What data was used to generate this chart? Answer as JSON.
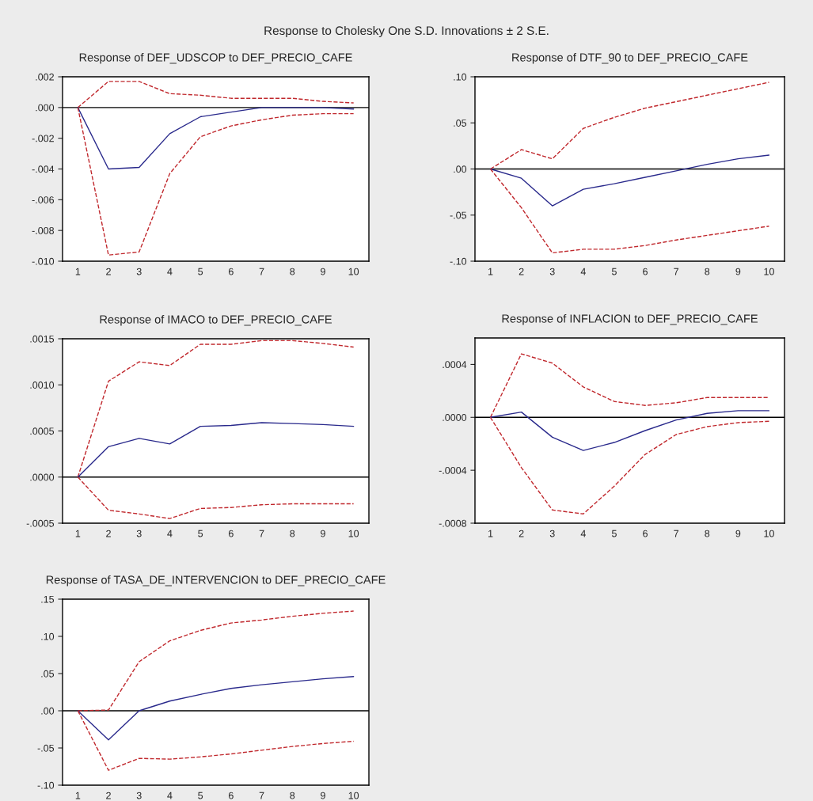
{
  "chart_data": [
    {
      "type": "line",
      "title": "Response of DEF_UDSCOP to DEF_PRECIO_CAFE",
      "annotations": [
        "Response to Cholesky One S.D. Innovations ± 2 S.E."
      ],
      "categories": [
        "1",
        "2",
        "3",
        "4",
        "5",
        "6",
        "7",
        "8",
        "9",
        "10"
      ],
      "ylim": [
        -0.01,
        0.002
      ],
      "yticks": [
        {
          "value": 0.002,
          "label": ".002"
        },
        {
          "value": 0,
          "label": ".000"
        },
        {
          "value": -0.002,
          "label": "-.002"
        },
        {
          "value": -0.004,
          "label": "-.004"
        },
        {
          "value": -0.006,
          "label": "-.006"
        },
        {
          "value": -0.008,
          "label": "-.008"
        },
        {
          "value": -0.01,
          "label": "-.010"
        }
      ],
      "ref_lines": [
        {
          "axis": "y",
          "value": 0,
          "color": "#000000"
        }
      ],
      "series": [
        {
          "color": "#c0282d",
          "line_style": "dashed",
          "values": [
            0,
            0.0017,
            0.0017,
            0.0009,
            0.0008,
            0.0006,
            0.0006,
            0.0006,
            0.0004,
            0.0003
          ]
        },
        {
          "color": "#2a2a8c",
          "line_style": "solid",
          "values": [
            0,
            -0.004,
            -0.0039,
            -0.0017,
            -0.0006,
            -0.0003,
            0,
            0,
            0,
            -0.0001
          ]
        },
        {
          "color": "#c0282d",
          "line_style": "dashed",
          "values": [
            0,
            -0.0096,
            -0.0094,
            -0.0043,
            -0.0019,
            -0.0012,
            -0.0008,
            -0.0005,
            -0.0004,
            -0.0004
          ]
        }
      ]
    },
    {
      "type": "line",
      "title": "Response of DTF_90 to DEF_PRECIO_CAFE",
      "categories": [
        "1",
        "2",
        "3",
        "4",
        "5",
        "6",
        "7",
        "8",
        "9",
        "10"
      ],
      "ylim": [
        -0.1,
        0.1
      ],
      "yticks": [
        {
          "value": 0.1,
          "label": ".10"
        },
        {
          "value": 0.05,
          "label": ".05"
        },
        {
          "value": 0,
          "label": ".00"
        },
        {
          "value": -0.05,
          "label": "-.05"
        },
        {
          "value": -0.1,
          "label": "-.10"
        }
      ],
      "ref_lines": [
        {
          "axis": "y",
          "value": 0,
          "color": "#000000"
        }
      ],
      "series": [
        {
          "color": "#c0282d",
          "line_style": "dashed",
          "values": [
            0,
            0.021,
            0.011,
            0.044,
            0.056,
            0.066,
            0.073,
            0.08,
            0.087,
            0.094
          ]
        },
        {
          "color": "#2a2a8c",
          "line_style": "solid",
          "values": [
            0,
            -0.01,
            -0.04,
            -0.022,
            -0.016,
            -0.009,
            -0.002,
            0.005,
            0.011,
            0.015
          ]
        },
        {
          "color": "#c0282d",
          "line_style": "dashed",
          "values": [
            0,
            -0.042,
            -0.091,
            -0.087,
            -0.087,
            -0.083,
            -0.077,
            -0.072,
            -0.067,
            -0.062
          ]
        }
      ]
    },
    {
      "type": "line",
      "title": "Response of IMACO to DEF_PRECIO_CAFE",
      "categories": [
        "1",
        "2",
        "3",
        "4",
        "5",
        "6",
        "7",
        "8",
        "9",
        "10"
      ],
      "ylim": [
        -0.0005,
        0.0015
      ],
      "yticks": [
        {
          "value": 0.0015,
          "label": ".0015"
        },
        {
          "value": 0.001,
          "label": ".0010"
        },
        {
          "value": 0.0005,
          "label": ".0005"
        },
        {
          "value": 0,
          "label": ".0000"
        },
        {
          "value": -0.0005,
          "label": "-.0005"
        }
      ],
      "ref_lines": [
        {
          "axis": "y",
          "value": 0,
          "color": "#000000"
        }
      ],
      "series": [
        {
          "color": "#c0282d",
          "line_style": "dashed",
          "values": [
            0,
            0.00104,
            0.00125,
            0.00121,
            0.00144,
            0.00144,
            0.00148,
            0.00148,
            0.00145,
            0.00141
          ]
        },
        {
          "color": "#2a2a8c",
          "line_style": "solid",
          "values": [
            0,
            0.00033,
            0.00042,
            0.00036,
            0.00055,
            0.00056,
            0.00059,
            0.00058,
            0.00057,
            0.00055
          ]
        },
        {
          "color": "#c0282d",
          "line_style": "dashed",
          "values": [
            0,
            -0.00036,
            -0.0004,
            -0.00045,
            -0.00034,
            -0.00033,
            -0.0003,
            -0.00029,
            -0.00029,
            -0.00029
          ]
        }
      ]
    },
    {
      "type": "line",
      "title": "Response of INFLACION to DEF_PRECIO_CAFE",
      "categories": [
        "1",
        "2",
        "3",
        "4",
        "5",
        "6",
        "7",
        "8",
        "9",
        "10"
      ],
      "ylim": [
        -0.0008,
        0.0006
      ],
      "yticks": [
        {
          "value": 0.0004,
          "label": ".0004"
        },
        {
          "value": 0,
          "label": ".0000"
        },
        {
          "value": -0.0004,
          "label": "-.0004"
        },
        {
          "value": -0.0008,
          "label": "-.0008"
        }
      ],
      "ref_lines": [
        {
          "axis": "y",
          "value": 0,
          "color": "#000000"
        }
      ],
      "series": [
        {
          "color": "#c0282d",
          "line_style": "dashed",
          "values": [
            0,
            0.00048,
            0.00041,
            0.00023,
            0.00012,
            9e-05,
            0.00011,
            0.00015,
            0.00015,
            0.00015
          ]
        },
        {
          "color": "#2a2a8c",
          "line_style": "solid",
          "values": [
            0,
            4e-05,
            -0.00015,
            -0.00025,
            -0.00019,
            -0.0001,
            -2e-05,
            3e-05,
            5e-05,
            5e-05
          ]
        },
        {
          "color": "#c0282d",
          "line_style": "dashed",
          "values": [
            0,
            -0.00038,
            -0.0007,
            -0.00073,
            -0.00052,
            -0.00028,
            -0.00013,
            -7e-05,
            -4e-05,
            -3e-05
          ]
        }
      ]
    },
    {
      "type": "line",
      "title": "Response of TASA_DE_INTERVENCION to DEF_PRECIO_CAFE",
      "categories": [
        "1",
        "2",
        "3",
        "4",
        "5",
        "6",
        "7",
        "8",
        "9",
        "10"
      ],
      "ylim": [
        -0.1,
        0.15
      ],
      "yticks": [
        {
          "value": 0.15,
          "label": ".15"
        },
        {
          "value": 0.1,
          "label": ".10"
        },
        {
          "value": 0.05,
          "label": ".05"
        },
        {
          "value": 0,
          "label": ".00"
        },
        {
          "value": -0.05,
          "label": "-.05"
        },
        {
          "value": -0.1,
          "label": "-.10"
        }
      ],
      "ref_lines": [
        {
          "axis": "y",
          "value": 0,
          "color": "#000000"
        }
      ],
      "series": [
        {
          "color": "#c0282d",
          "line_style": "dashed",
          "values": [
            0,
            0.001,
            0.066,
            0.094,
            0.108,
            0.118,
            0.122,
            0.127,
            0.131,
            0.134
          ]
        },
        {
          "color": "#2a2a8c",
          "line_style": "solid",
          "values": [
            0,
            -0.039,
            0,
            0.013,
            0.022,
            0.03,
            0.035,
            0.039,
            0.043,
            0.046
          ]
        },
        {
          "color": "#c0282d",
          "line_style": "dashed",
          "values": [
            0,
            -0.08,
            -0.064,
            -0.065,
            -0.062,
            -0.058,
            -0.053,
            -0.048,
            -0.044,
            -0.041
          ]
        }
      ]
    }
  ]
}
